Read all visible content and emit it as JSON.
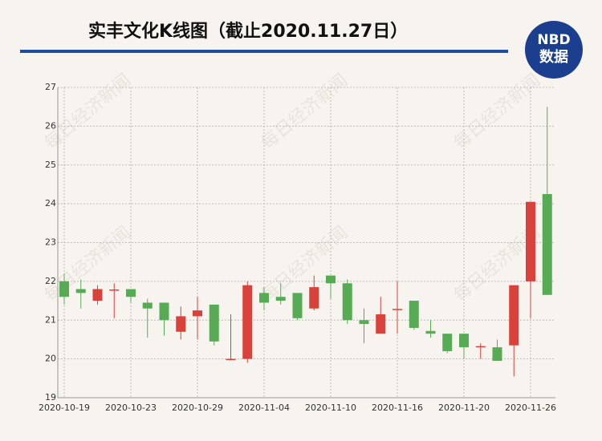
{
  "chart_data": {
    "type": "candlestick",
    "title": "实丰文化K线图（截止2020.11.27日）",
    "logo": {
      "top": "NBD",
      "bottom": "数据"
    },
    "watermark": "每日经济新闻",
    "categories": [
      "2020-10-19",
      null,
      null,
      null,
      "2020-10-23",
      null,
      null,
      null,
      "2020-10-29",
      null,
      null,
      null,
      "2020-11-04",
      null,
      null,
      null,
      "2020-11-10",
      null,
      null,
      null,
      "2020-11-16",
      null,
      null,
      null,
      "2020-11-20",
      null,
      null,
      null,
      "2020-11-26",
      null
    ],
    "open": [
      22.0,
      21.8,
      21.5,
      21.77,
      21.8,
      21.45,
      21.45,
      20.7,
      21.1,
      21.4,
      19.98,
      20.0,
      21.7,
      21.6,
      21.7,
      21.3,
      22.15,
      21.95,
      21.0,
      20.65,
      21.27,
      21.5,
      20.72,
      20.65,
      20.65,
      20.3,
      20.3,
      20.35,
      22.0,
      24.25
    ],
    "high": [
      22.2,
      22.05,
      21.9,
      21.95,
      21.8,
      21.55,
      21.45,
      21.35,
      21.6,
      21.4,
      21.15,
      22.0,
      21.85,
      21.95,
      21.7,
      22.15,
      22.15,
      22.05,
      21.3,
      21.6,
      22.0,
      21.5,
      21.0,
      20.65,
      20.65,
      20.4,
      20.5,
      21.9,
      24.05,
      26.5
    ],
    "low": [
      21.4,
      21.3,
      21.4,
      21.05,
      21.45,
      20.55,
      20.6,
      20.5,
      20.5,
      20.35,
      19.97,
      19.9,
      21.25,
      21.4,
      21.0,
      21.25,
      21.55,
      20.9,
      20.4,
      20.65,
      20.65,
      20.75,
      20.55,
      20.15,
      20.0,
      20.0,
      19.95,
      19.55,
      21.05,
      21.65
    ],
    "close": [
      21.6,
      21.7,
      21.8,
      21.79,
      21.6,
      21.3,
      21.0,
      21.1,
      21.25,
      20.45,
      20.0,
      21.9,
      21.45,
      21.5,
      21.05,
      21.85,
      21.95,
      21.0,
      20.9,
      21.15,
      21.29,
      20.8,
      20.65,
      20.2,
      20.3,
      20.33,
      19.95,
      21.9,
      24.05,
      21.65
    ],
    "up_color": "#d9423a",
    "down_color": "#58ab55",
    "ylim": [
      19,
      27
    ],
    "yticks": [
      19,
      20,
      21,
      22,
      23,
      24,
      25,
      26,
      27
    ],
    "grid": true
  }
}
